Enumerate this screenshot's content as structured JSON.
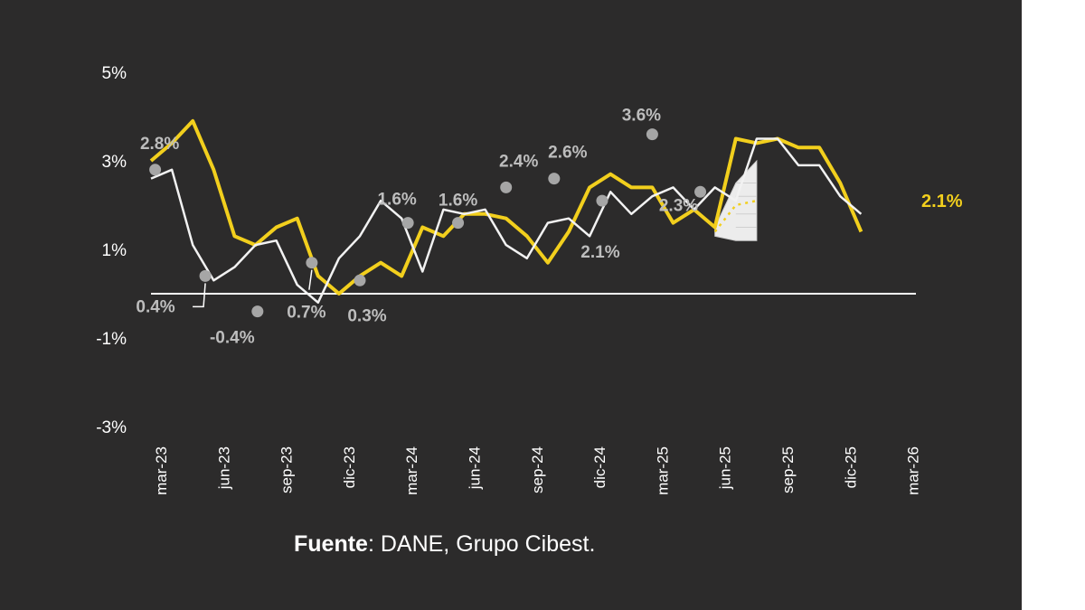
{
  "chart_data": {
    "type": "line",
    "y_ticks": [
      "5%",
      "3%",
      "1%",
      "-1%",
      "-3%"
    ],
    "y_tick_values": [
      5,
      3,
      1,
      -1,
      -3
    ],
    "ylim": [
      -3,
      5
    ],
    "x_tick_labels": [
      "mar-23",
      "jun-23",
      "sep-23",
      "dic-23",
      "mar-24",
      "jun-24",
      "sep-24",
      "dic-24",
      "mar-25",
      "jun-25",
      "sep-25",
      "dic-25",
      "mar-26"
    ],
    "x_start": "mar-23",
    "colors": {
      "yellow_series": "#f2cf1d",
      "white_series": "#f2f2f2",
      "markers": "#a6a6a6",
      "labels": "#bdbdbd",
      "background": "#2c2b2b"
    },
    "series": [
      {
        "color": "#f2cf1d",
        "values": [
          3.0,
          3.4,
          3.9,
          2.8,
          1.3,
          1.1,
          1.5,
          1.7,
          0.4,
          0.0,
          0.4,
          0.7,
          0.4,
          1.5,
          1.3,
          1.8,
          1.8,
          1.7,
          1.3,
          0.7,
          1.4,
          2.4,
          2.7,
          2.4,
          2.4,
          1.6,
          1.9,
          1.5,
          3.5,
          3.4,
          3.5,
          3.3,
          3.3,
          2.5,
          1.4
        ]
      },
      {
        "color": "#f2f2f2",
        "values": [
          2.6,
          2.8,
          1.1,
          0.3,
          0.6,
          1.1,
          1.2,
          0.2,
          -0.2,
          0.8,
          1.3,
          2.1,
          1.7,
          0.5,
          1.9,
          1.8,
          1.9,
          1.1,
          0.8,
          1.6,
          1.7,
          1.3,
          2.3,
          1.8,
          2.2,
          2.4,
          1.9,
          2.4,
          2.1,
          3.5,
          3.5,
          2.9,
          2.9,
          2.2,
          1.8
        ]
      }
    ],
    "markers": [
      {
        "x": 0.2,
        "y": 2.8,
        "label": "2.8%"
      },
      {
        "x": 2.6,
        "y": 0.4,
        "label": "0.4%"
      },
      {
        "x": 5.1,
        "y": -0.4,
        "label": "-0.4%"
      },
      {
        "x": 7.7,
        "y": 0.7,
        "label": "0.7%"
      },
      {
        "x": 10.0,
        "y": 0.3,
        "label": "0.3%"
      },
      {
        "x": 12.3,
        "y": 1.6,
        "label": "1.6%"
      },
      {
        "x": 14.7,
        "y": 1.6,
        "label": "1.6%"
      },
      {
        "x": 17.0,
        "y": 2.4,
        "label": "2.4%"
      },
      {
        "x": 19.3,
        "y": 2.6,
        "label": "2.6%"
      },
      {
        "x": 21.6,
        "y": 2.1,
        "label": "2.1%"
      },
      {
        "x": 24.0,
        "y": 3.6,
        "label": "3.6%"
      },
      {
        "x": 26.3,
        "y": 2.3,
        "label": "2.3%"
      }
    ],
    "forecast": {
      "label": "2.1%",
      "value": 2.1,
      "band_upper": [
        1.5,
        2.5,
        3.0
      ],
      "band_lower": [
        1.3,
        1.2,
        1.2
      ],
      "center": [
        1.4,
        2.0,
        2.1
      ],
      "x": [
        27.0,
        28.0,
        29.0
      ]
    }
  },
  "source": {
    "lead": "Fuente",
    "text": ": DANE, Grupo Cibest."
  }
}
